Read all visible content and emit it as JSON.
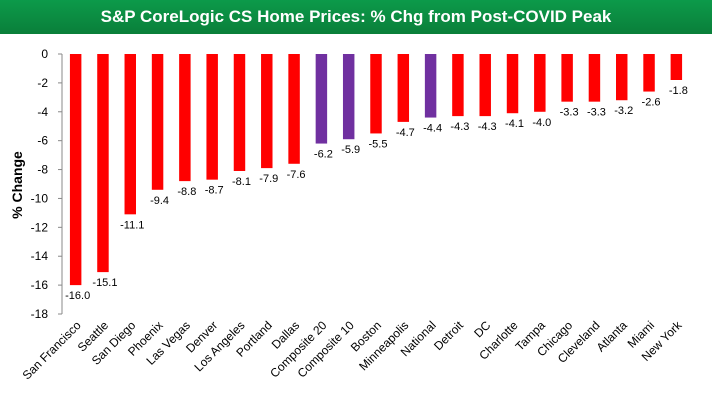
{
  "chart_data": {
    "type": "bar",
    "title": "S&P CoreLogic CS Home Prices: % Chg from Post-COVID Peak",
    "xlabel": "",
    "ylabel": "% Change",
    "ylim": [
      -18,
      0
    ],
    "yticks": [
      0,
      -2,
      -4,
      -6,
      -8,
      -10,
      -12,
      -14,
      -16,
      -18
    ],
    "categories": [
      "San Francisco",
      "Seattle",
      "San Diego",
      "Phoenix",
      "Las Vegas",
      "Denver",
      "Los Angeles",
      "Portland",
      "Dallas",
      "Composite 20",
      "Composite 10",
      "Boston",
      "Minneapolis",
      "National",
      "Detroit",
      "DC",
      "Charlotte",
      "Tampa",
      "Chicago",
      "Cleveland",
      "Atlanta",
      "Miami",
      "New York"
    ],
    "values": [
      -16.0,
      -15.1,
      -11.1,
      -9.4,
      -8.8,
      -8.7,
      -8.1,
      -7.9,
      -7.6,
      -6.2,
      -5.9,
      -5.5,
      -4.7,
      -4.4,
      -4.3,
      -4.3,
      -4.1,
      -4.0,
      -3.3,
      -3.3,
      -3.2,
      -2.6,
      -1.8
    ],
    "labels": [
      "-16.0",
      "-15.1",
      "-11.1",
      "-9.4",
      "-8.8",
      "-8.7",
      "-8.1",
      "-7.9",
      "-7.6",
      "-6.2",
      "-5.9",
      "-5.5",
      "-4.7",
      "-4.4",
      "-4.3",
      "-4.3",
      "-4.1",
      "-4.0",
      "-3.3",
      "-3.3",
      "-3.2",
      "-2.6",
      "-1.8"
    ],
    "highlight": [
      "Composite 20",
      "Composite 10",
      "National"
    ],
    "colors": {
      "default": "#ff0000",
      "highlight": "#7030a0",
      "title_bg": "#0a8a40"
    },
    "grid": false,
    "legend": "none"
  }
}
